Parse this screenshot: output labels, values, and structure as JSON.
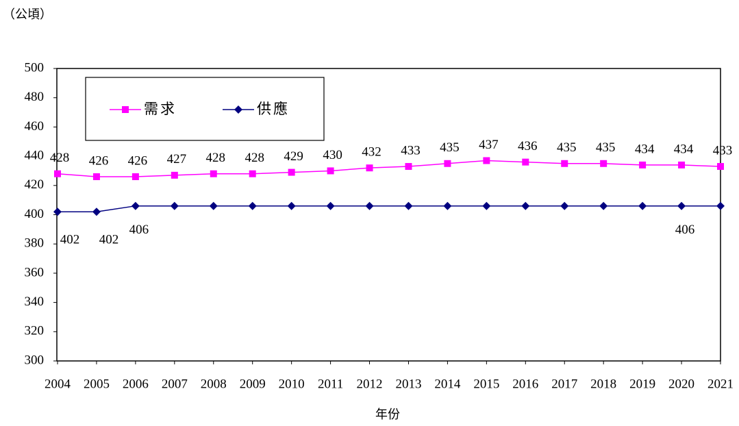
{
  "chart_data": {
    "type": "line",
    "unit_label": "（公頃）",
    "x_label": "年份",
    "categories": [
      "2004",
      "2005",
      "2006",
      "2007",
      "2008",
      "2009",
      "2010",
      "2011",
      "2012",
      "2013",
      "2014",
      "2015",
      "2016",
      "2017",
      "2018",
      "2019",
      "2020",
      "2021"
    ],
    "series": [
      {
        "name": "需求",
        "color": "#ff00ff",
        "marker": "square",
        "values": [
          428,
          426,
          426,
          427,
          428,
          428,
          429,
          430,
          432,
          433,
          435,
          437,
          436,
          435,
          435,
          434,
          434,
          433
        ]
      },
      {
        "name": "供應",
        "color": "#000080",
        "marker": "diamond",
        "values": [
          402,
          402,
          406,
          406,
          406,
          406,
          406,
          406,
          406,
          406,
          406,
          406,
          406,
          406,
          406,
          406,
          406,
          406
        ],
        "value_labels": [
          "402",
          "402",
          "406",
          null,
          null,
          null,
          null,
          null,
          null,
          null,
          null,
          null,
          null,
          null,
          null,
          null,
          "406",
          null
        ]
      }
    ],
    "ylim": [
      300,
      500
    ],
    "yticks": [
      300,
      320,
      340,
      360,
      380,
      400,
      420,
      440,
      460,
      480,
      500
    ],
    "grid": false,
    "legend": "upper left"
  }
}
